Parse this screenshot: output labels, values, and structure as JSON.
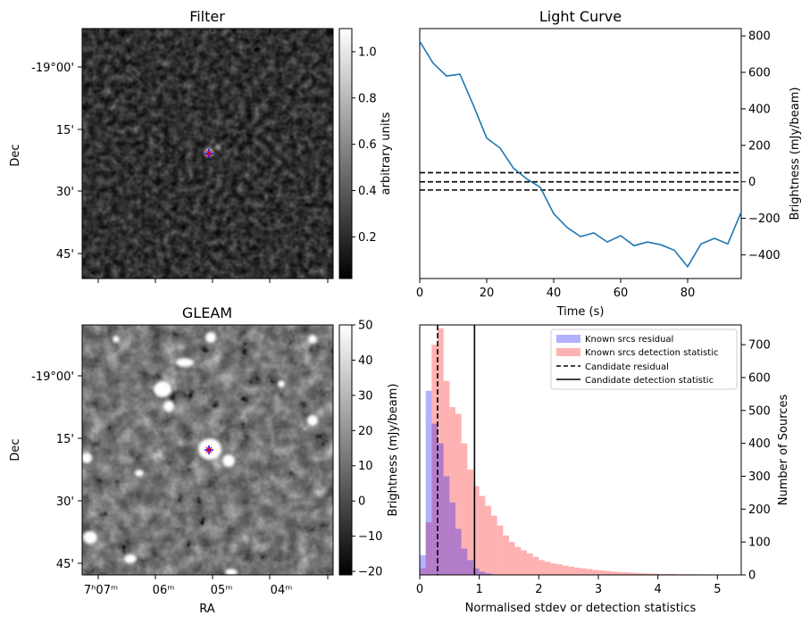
{
  "chart_data": [
    {
      "type": "heatmap",
      "title": "Filter",
      "xlabel": "",
      "ylabel": "Dec",
      "y_ticks": [
        "-19°00'",
        "15'",
        "30'",
        "45'"
      ],
      "colorbar": {
        "label": "arbitrary units",
        "range": [
          0.02,
          1.1
        ],
        "ticks": [
          0.2,
          0.4,
          0.6,
          0.8,
          1.0
        ],
        "tick_labels": [
          "0.2",
          "0.4",
          "0.6",
          "0.8",
          "1.0"
        ]
      },
      "markers": [
        "blue-plus",
        "red-x"
      ]
    },
    {
      "type": "line",
      "title": "Light Curve",
      "xlabel": "Time (s)",
      "ylabel": "Brightness (mJy/beam)",
      "xlim": [
        0,
        96
      ],
      "ylim": [
        -530,
        840
      ],
      "x_ticks": [
        0,
        20,
        40,
        60,
        80
      ],
      "y_ticks": [
        -400,
        -200,
        0,
        200,
        400,
        600,
        800
      ],
      "series": [
        {
          "name": "light curve",
          "color": "#1f77b4",
          "x": [
            0,
            4,
            8,
            12,
            16,
            20,
            24,
            28,
            32,
            36,
            40,
            44,
            48,
            52,
            56,
            60,
            64,
            68,
            72,
            76,
            80,
            84,
            88,
            92,
            96
          ],
          "y": [
            770,
            650,
            580,
            590,
            420,
            240,
            185,
            75,
            15,
            -30,
            -175,
            -250,
            -300,
            -280,
            -330,
            -295,
            -350,
            -330,
            -345,
            -375,
            -465,
            -340,
            -310,
            -340,
            -165
          ]
        }
      ],
      "hlines": [
        50,
        0,
        -45
      ],
      "hline_style": "dashed"
    },
    {
      "type": "heatmap",
      "title": "GLEAM",
      "xlabel": "RA",
      "ylabel": "Dec",
      "x_ticks": [
        "7ʰ07ᵐ",
        "06ᵐ",
        "05ᵐ",
        "04ᵐ"
      ],
      "y_ticks": [
        "-19°00'",
        "15'",
        "30'",
        "45'"
      ],
      "colorbar": {
        "label": "Brightness (mJy/beam)",
        "range": [
          -21,
          50
        ],
        "ticks": [
          -20,
          -10,
          0,
          10,
          20,
          30,
          40,
          50
        ],
        "tick_labels": [
          "−20",
          "−10",
          "0",
          "10",
          "20",
          "30",
          "40",
          "50"
        ]
      },
      "markers": [
        "blue-plus",
        "red-x"
      ]
    },
    {
      "type": "bar",
      "subtype": "histogram",
      "title": "",
      "xlabel": "Normalised stdev or detection statistics",
      "ylabel": "Number of Sources",
      "xlim": [
        0,
        5.4
      ],
      "ylim": [
        0,
        760
      ],
      "x_ticks": [
        0,
        1,
        2,
        3,
        4,
        5
      ],
      "y_ticks": [
        0,
        100,
        200,
        300,
        400,
        500,
        600,
        700
      ],
      "bin_width": 0.1,
      "series": [
        {
          "name": "Known srcs residual",
          "color": "#0000ff",
          "opacity": 0.3,
          "bin_start": 0.0,
          "values": [
            60,
            560,
            460,
            400,
            300,
            220,
            140,
            80,
            45,
            20,
            10,
            5,
            2
          ]
        },
        {
          "name": "Known srcs detection statistic",
          "color": "#ff0000",
          "opacity": 0.3,
          "bin_start": 0.0,
          "values": [
            20,
            160,
            700,
            750,
            590,
            510,
            490,
            400,
            320,
            270,
            240,
            210,
            180,
            150,
            120,
            100,
            85,
            75,
            65,
            55,
            45,
            40,
            35,
            32,
            28,
            25,
            22,
            20,
            18,
            15,
            14,
            12,
            10,
            9,
            8,
            7,
            6,
            5,
            4,
            4,
            3,
            3,
            3,
            2,
            2,
            2,
            2,
            1,
            1,
            1,
            1,
            1,
            1
          ]
        }
      ],
      "vlines": [
        {
          "name": "Candidate residual",
          "x": 0.3,
          "style": "dashed"
        },
        {
          "name": "Candidate detection statistic",
          "x": 0.92,
          "style": "solid"
        }
      ],
      "legend": [
        "Known srcs residual",
        "Known srcs detection statistic",
        "Candidate residual",
        "Candidate detection statistic"
      ],
      "legend_position": "top-right"
    }
  ]
}
